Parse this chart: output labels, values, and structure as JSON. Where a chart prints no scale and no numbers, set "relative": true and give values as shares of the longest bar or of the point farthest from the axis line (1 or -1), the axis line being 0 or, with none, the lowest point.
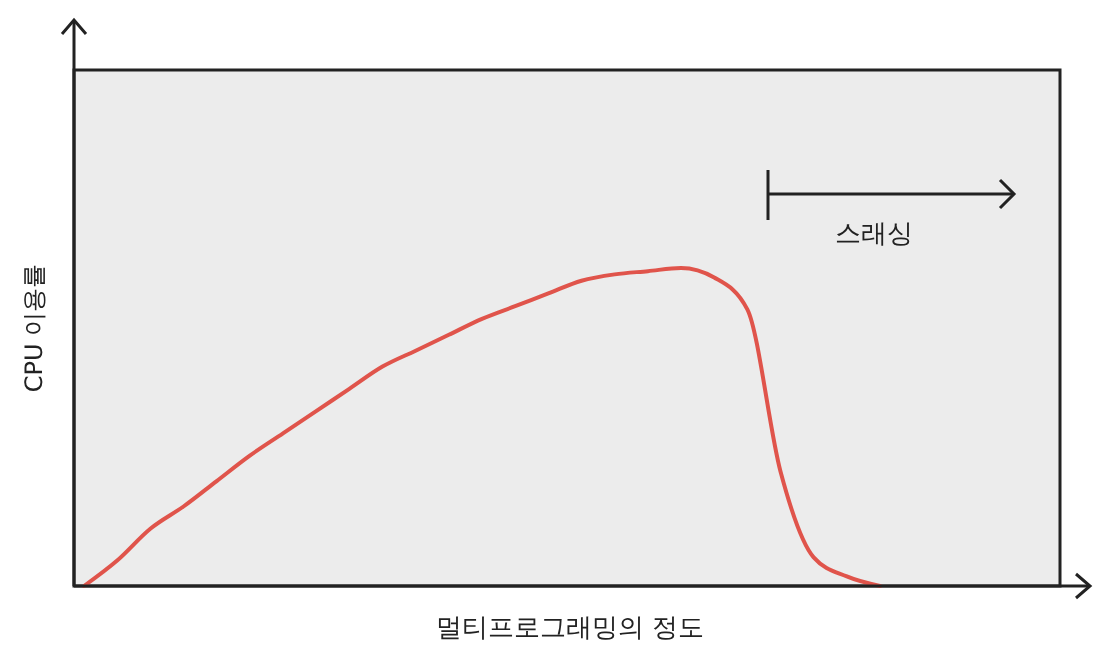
{
  "chart_data": {
    "type": "line",
    "relative": true,
    "xlabel": "멀티프로그래밍의 정도",
    "ylabel": "CPU 이용률",
    "annotations": [
      "스래싱"
    ],
    "categories": [
      null,
      null,
      null,
      null,
      null,
      null,
      null,
      null,
      null,
      null,
      null,
      null,
      null,
      null,
      null,
      null,
      null,
      null,
      null,
      null,
      null,
      null,
      null,
      null,
      null
    ],
    "series": [
      {
        "color": "#e0544b",
        "values": [
          0,
          0.08,
          0.18,
          0.25,
          0.33,
          0.41,
          0.48,
          0.55,
          0.62,
          0.69,
          0.74,
          0.79,
          0.84,
          0.88,
          0.92,
          0.96,
          0.98,
          0.99,
          1,
          0.97,
          0.87,
          0.36,
          0.09,
          0.03,
          0
        ]
      }
    ],
    "marker": "none",
    "line_style": "solid"
  }
}
